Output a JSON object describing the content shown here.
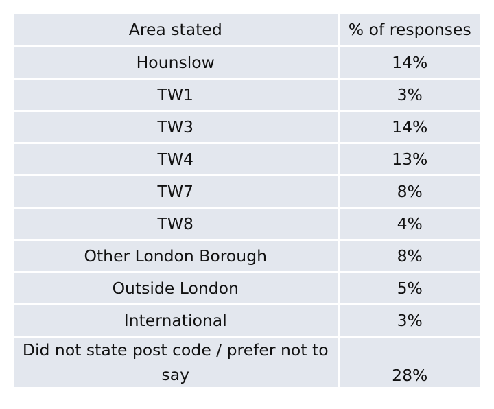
{
  "table": {
    "headers": {
      "area": "Area stated",
      "percent": "% of responses"
    },
    "rows": [
      {
        "area": "Hounslow",
        "percent": "14%"
      },
      {
        "area": "TW1",
        "percent": "3%"
      },
      {
        "area": "TW3",
        "percent": "14%"
      },
      {
        "area": "TW4",
        "percent": "13%"
      },
      {
        "area": "TW7",
        "percent": "8%"
      },
      {
        "area": "TW8",
        "percent": "4%"
      },
      {
        "area": "Other London Borough",
        "percent": "8%"
      },
      {
        "area": "Outside London",
        "percent": "5%"
      },
      {
        "area": "International",
        "percent": "3%"
      },
      {
        "area": "Did not state post code / prefer not to say",
        "percent": "28%"
      }
    ]
  }
}
